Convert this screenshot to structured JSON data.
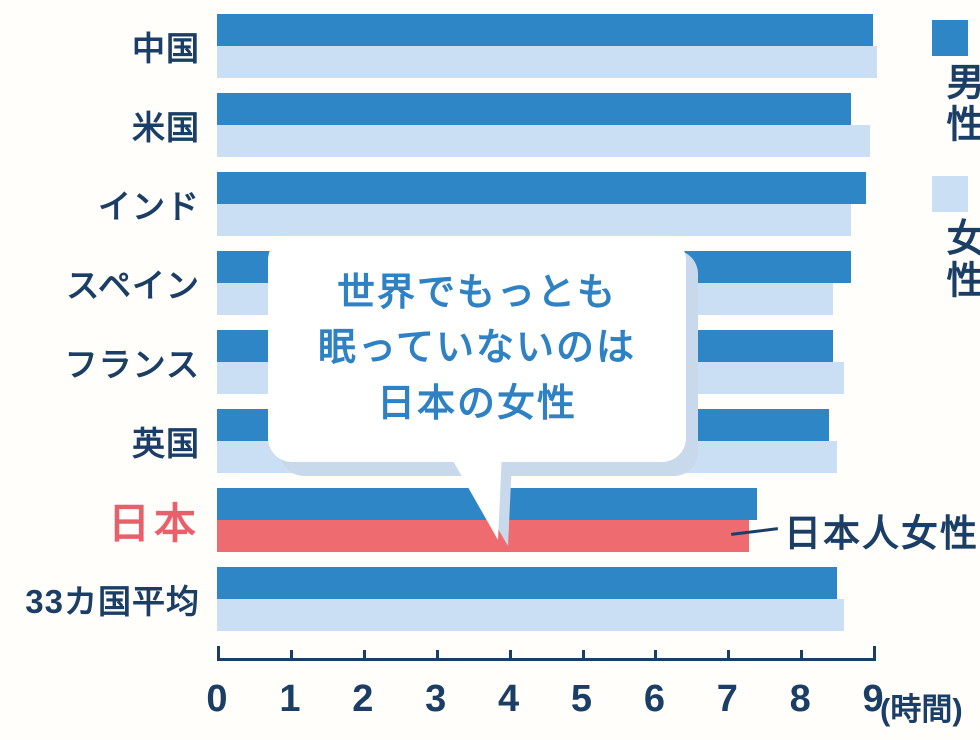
{
  "colors": {
    "background": "#fffefa",
    "male_bar": "#2e86c6",
    "female_bar": "#cbdff4",
    "highlight_bar": "#ee6b6f",
    "label_navy": "#1b3e66",
    "japan_label_red": "#e9606b",
    "bubble_text_blue": "#2e82c4",
    "bubble_shadow_blue": "#c9d9ec"
  },
  "legend": {
    "male_label": "男性",
    "female_label": "女性"
  },
  "bubble": {
    "lines": [
      "世界でもっとも",
      "眠っていないのは",
      "日本の女性"
    ]
  },
  "annotation": {
    "label": "日本人女性"
  },
  "chart_data": {
    "type": "bar",
    "orientation": "horizontal",
    "unit": "hours",
    "title": "",
    "xlabel": "(時間)",
    "xlim": [
      0,
      9
    ],
    "x_ticks": [
      "0",
      "1",
      "2",
      "3",
      "4",
      "5",
      "6",
      "7",
      "8",
      "9"
    ],
    "legend_position": "right",
    "grid": false,
    "categories": [
      "中国",
      "米国",
      "インド",
      "スペイン",
      "フランス",
      "英国",
      "日本",
      "33カ国平均"
    ],
    "series": [
      {
        "name": "男性",
        "values": [
          9.0,
          8.7,
          8.9,
          8.7,
          8.45,
          8.4,
          7.4,
          8.5
        ]
      },
      {
        "name": "女性",
        "values": [
          9.05,
          8.95,
          8.7,
          8.45,
          8.6,
          8.5,
          7.3,
          8.6
        ]
      }
    ],
    "highlight": {
      "category": "日本",
      "series": "女性",
      "color": "#ee6b6f",
      "annotation": "日本人女性"
    }
  }
}
